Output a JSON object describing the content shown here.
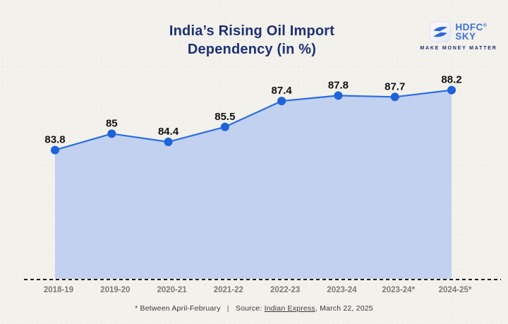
{
  "header": {
    "title_line1": "India’s Rising Oil Import",
    "title_line2": "Dependency (in %)",
    "logo": {
      "brand_line1": "HDFC",
      "brand_line2": "SKY",
      "registered_mark": "®",
      "tagline": "MAKE MONEY MATTER",
      "icon": "hdfc-sky-swoosh-icon"
    }
  },
  "chart_data": {
    "type": "area",
    "title": "India’s Rising Oil Import Dependency (in %)",
    "categories": [
      "2018-19",
      "2019-20",
      "2020-21",
      "2021-22",
      "2022-23",
      "2023-24",
      "2023-24*",
      "2024-25*"
    ],
    "values": [
      83.8,
      85,
      84.4,
      85.5,
      87.4,
      87.8,
      87.7,
      88.2
    ],
    "point_labels": [
      "83.8",
      "85",
      "84.4",
      "85.5",
      "87.4",
      "87.8",
      "87.7",
      "88.2"
    ],
    "xlabel": "",
    "ylabel": "",
    "ylim": [
      74.4,
      92
    ],
    "grid": false,
    "legend": false,
    "baseline_style": "dashed",
    "colors": {
      "line": "#2a6de4",
      "point": "#1f63db",
      "area_fill": "#c2d1f0",
      "axis_dash": "#1c1c1c",
      "tick_label": "#7b7a74",
      "data_label": "#121212"
    }
  },
  "footer": {
    "note": "* Between April-February",
    "separator": "|",
    "source_label": "Source:",
    "source_name": "Indian Express",
    "source_suffix": ", March 22, 2025"
  },
  "colors": {
    "background": "#f3f1ec",
    "title": "#1d3076",
    "logo_blue": "#3b70d8",
    "logo_navy": "#1c2f6e"
  }
}
